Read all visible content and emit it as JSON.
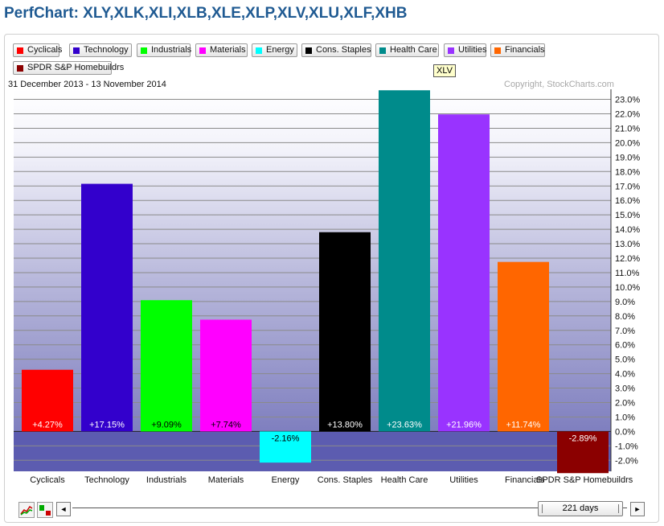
{
  "page": {
    "title": "PerfChart: XLY,XLK,XLI,XLB,XLE,XLP,XLV,XLU,XLF,XHB"
  },
  "legend": [
    {
      "label": "Cyclicals",
      "color": "#ff0000"
    },
    {
      "label": "Technology",
      "color": "#3300cc"
    },
    {
      "label": "Industrials",
      "color": "#00ff00"
    },
    {
      "label": "Materials",
      "color": "#ff00ff"
    },
    {
      "label": "Energy",
      "color": "#00ffff"
    },
    {
      "label": "Cons. Staples",
      "color": "#000000"
    },
    {
      "label": "Health Care",
      "color": "#008b8b"
    },
    {
      "label": "Utilities",
      "color": "#9933ff"
    },
    {
      "label": "Financials",
      "color": "#ff6600"
    },
    {
      "label": "SPDR S&P Homebuildrs",
      "color": "#8b0000"
    }
  ],
  "tooltip": "XLV",
  "chart_info": {
    "date_range": "31 December 2013 - 13 November 2014",
    "copyright": "Copyright, StockCharts.com"
  },
  "chart_data": {
    "type": "bar",
    "categories": [
      "Cyclicals",
      "Technology",
      "Industrials",
      "Materials",
      "Energy",
      "Cons. Staples",
      "Health Care",
      "Utilities",
      "Financials",
      "SPDR S&P Homebuildrs"
    ],
    "values": [
      4.27,
      17.15,
      9.09,
      7.74,
      -2.16,
      13.8,
      23.63,
      21.96,
      11.74,
      -2.89
    ],
    "value_labels": [
      "+4.27%",
      "+17.15%",
      "+9.09%",
      "+7.74%",
      "-2.16%",
      "+13.80%",
      "+23.63%",
      "+21.96%",
      "+11.74%",
      "-2.89%"
    ],
    "colors": [
      "#ff0000",
      "#3300cc",
      "#00ff00",
      "#ff00ff",
      "#00ffff",
      "#000000",
      "#008b8b",
      "#9933ff",
      "#ff6600",
      "#8b0000"
    ],
    "label_colors": [
      "#ffffff",
      "#ffffff",
      "#000000",
      "#000000",
      "#000000",
      "#ffffff",
      "#ffffff",
      "#ffffff",
      "#ffffff",
      "#ffffff"
    ],
    "ylim": [
      -3,
      23.5
    ],
    "yticks": [
      23,
      22,
      21,
      20,
      19,
      18,
      17,
      16,
      15,
      14,
      13,
      12,
      11,
      10,
      9,
      8,
      7,
      6,
      5,
      4,
      3,
      2,
      1,
      0,
      -1,
      -2
    ],
    "ytick_labels": [
      "23.0%",
      "22.0%",
      "21.0%",
      "20.0%",
      "19.0%",
      "18.0%",
      "17.0%",
      "16.0%",
      "15.0%",
      "14.0%",
      "13.0%",
      "12.0%",
      "11.0%",
      "10.0%",
      "9.0%",
      "8.0%",
      "7.0%",
      "6.0%",
      "5.0%",
      "4.0%",
      "3.0%",
      "2.0%",
      "1.0%",
      "0.0%",
      "-1.0%",
      "-2.0%"
    ],
    "xlabel": "",
    "ylabel": "",
    "grid": true
  },
  "controls": {
    "days_label": "221 days",
    "scroll_left_symbol": "◄",
    "scroll_right_symbol": "►",
    "icons": [
      "line-chart-icon",
      "bar-chart-icon"
    ]
  }
}
